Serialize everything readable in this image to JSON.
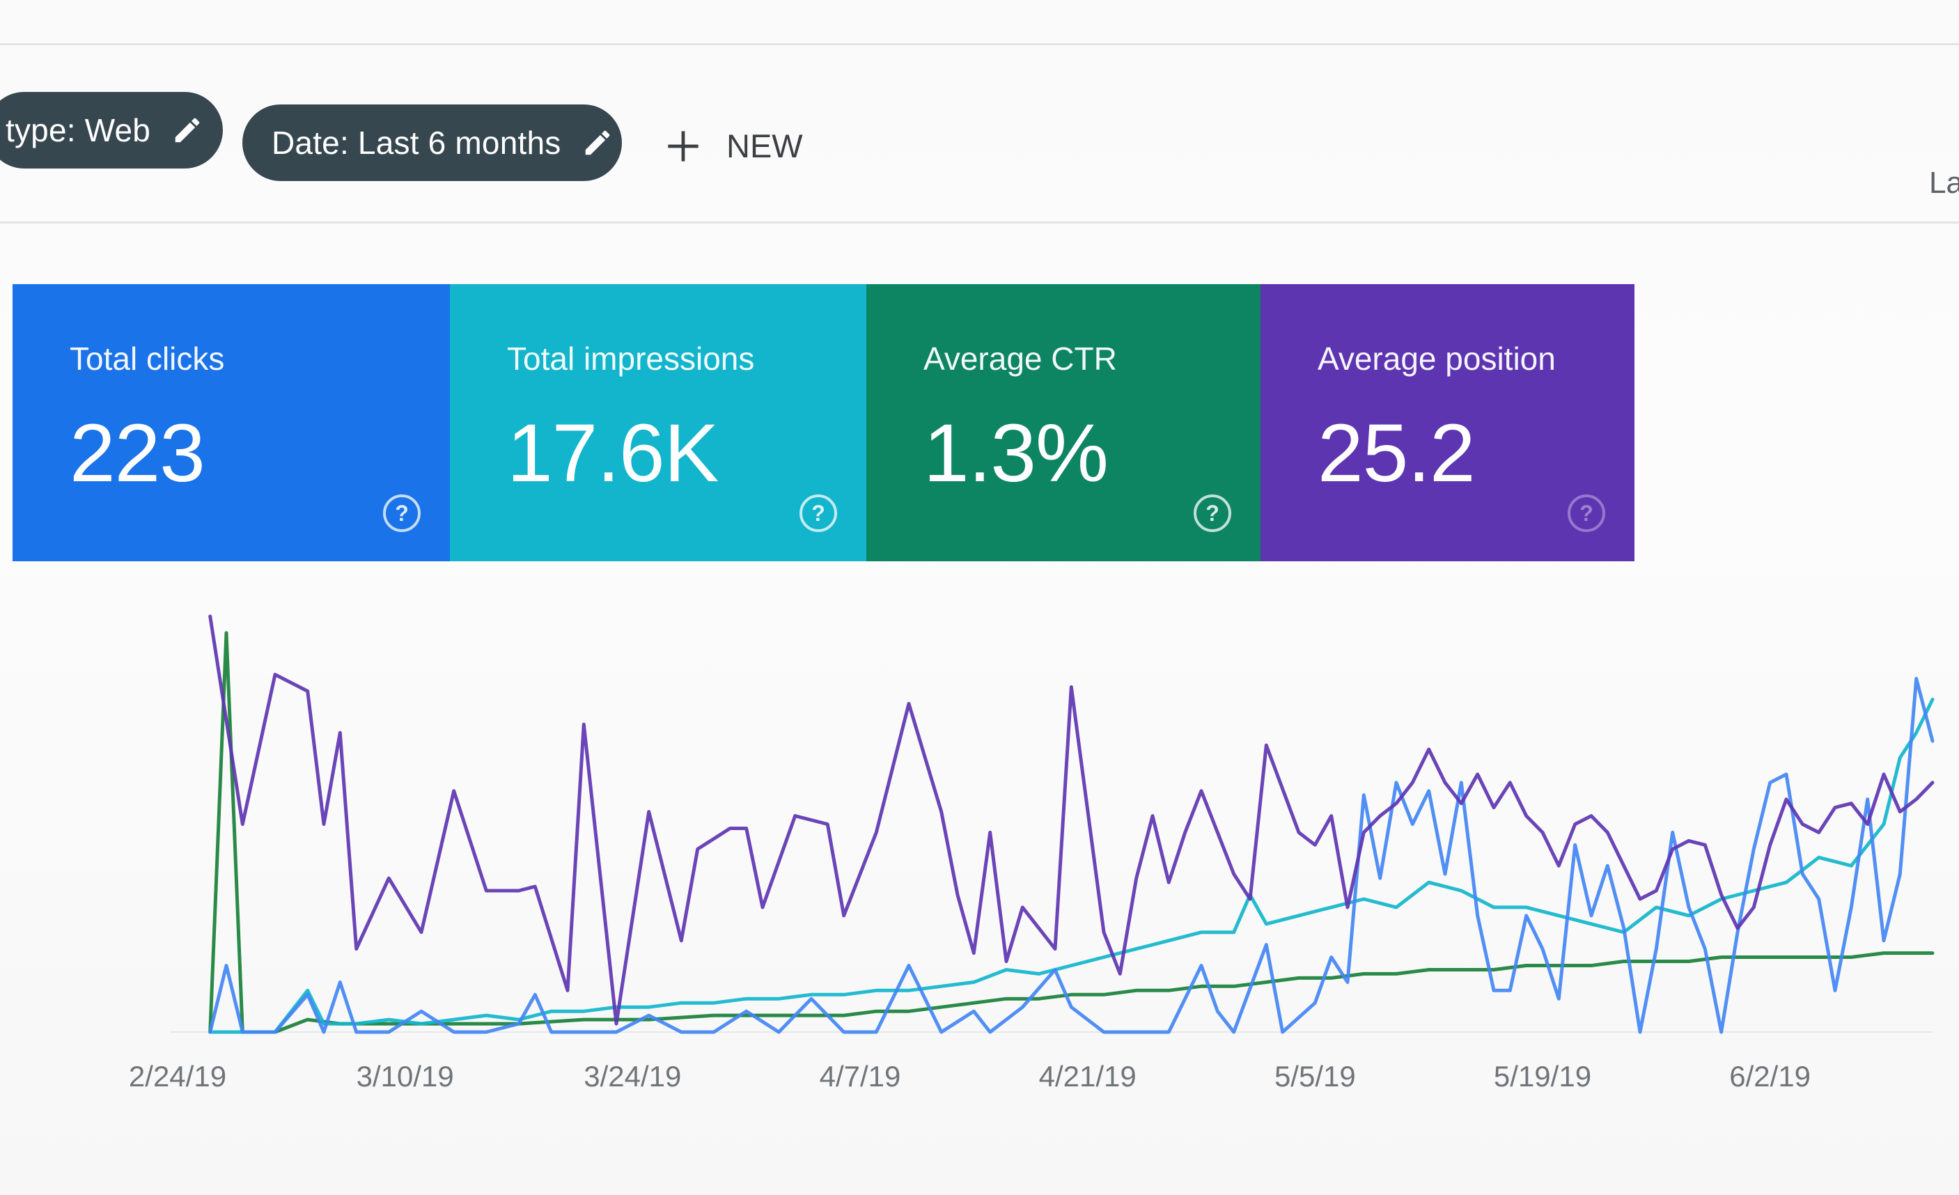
{
  "filters": {
    "type_chip": "type: Web",
    "date_chip": "Date: Last 6 months",
    "new_label": "NEW"
  },
  "corner_text": "La",
  "metrics": [
    {
      "title": "Total clicks",
      "value": "223",
      "color": "#1a73e8"
    },
    {
      "title": "Total impressions",
      "value": "17.6K",
      "color": "#12b5cb"
    },
    {
      "title": "Average CTR",
      "value": "1.3%",
      "color": "#0d8563"
    },
    {
      "title": "Average position",
      "value": "25.2",
      "color": "#5e35b1"
    }
  ],
  "icons": {
    "edit": "pencil-icon",
    "add": "plus-icon",
    "help": "question-circle-icon"
  },
  "chart_data": {
    "type": "line",
    "categories": [
      "2/24/19",
      "3/10/19",
      "3/24/19",
      "4/7/19",
      "4/21/19",
      "5/5/19",
      "5/19/19",
      "6/2/19"
    ],
    "x_range_days": [
      0,
      108
    ],
    "ylim": [
      0,
      1
    ],
    "grid": false,
    "legend": "none",
    "series": [
      {
        "color": "#5e35b1",
        "points": [
          [
            2,
            1.0
          ],
          [
            4,
            0.5
          ],
          [
            6,
            0.86
          ],
          [
            8,
            0.82
          ],
          [
            9,
            0.5
          ],
          [
            10,
            0.72
          ],
          [
            11,
            0.2
          ],
          [
            13,
            0.37
          ],
          [
            15,
            0.24
          ],
          [
            17,
            0.58
          ],
          [
            19,
            0.34
          ],
          [
            21,
            0.34
          ],
          [
            22,
            0.35
          ],
          [
            24,
            0.1
          ],
          [
            25,
            0.74
          ],
          [
            27,
            0.02
          ],
          [
            29,
            0.53
          ],
          [
            31,
            0.22
          ],
          [
            32,
            0.44
          ],
          [
            34,
            0.49
          ],
          [
            35,
            0.49
          ],
          [
            36,
            0.3
          ],
          [
            38,
            0.52
          ],
          [
            40,
            0.5
          ],
          [
            41,
            0.28
          ],
          [
            43,
            0.48
          ],
          [
            45,
            0.79
          ],
          [
            47,
            0.53
          ],
          [
            48,
            0.33
          ],
          [
            49,
            0.19
          ],
          [
            50,
            0.48
          ],
          [
            51,
            0.17
          ],
          [
            52,
            0.3
          ],
          [
            54,
            0.2
          ],
          [
            55,
            0.83
          ],
          [
            57,
            0.24
          ],
          [
            58,
            0.14
          ],
          [
            59,
            0.37
          ],
          [
            60,
            0.52
          ],
          [
            61,
            0.36
          ],
          [
            62,
            0.48
          ],
          [
            63,
            0.58
          ],
          [
            65,
            0.38
          ],
          [
            66,
            0.32
          ],
          [
            67,
            0.69
          ],
          [
            69,
            0.48
          ],
          [
            70,
            0.45
          ],
          [
            71,
            0.52
          ],
          [
            72,
            0.3
          ],
          [
            73,
            0.48
          ],
          [
            74,
            0.52
          ],
          [
            75,
            0.55
          ],
          [
            76,
            0.6
          ],
          [
            77,
            0.68
          ],
          [
            78,
            0.6
          ],
          [
            79,
            0.55
          ],
          [
            80,
            0.62
          ],
          [
            81,
            0.54
          ],
          [
            82,
            0.6
          ],
          [
            83,
            0.52
          ],
          [
            84,
            0.48
          ],
          [
            85,
            0.4
          ],
          [
            86,
            0.5
          ],
          [
            87,
            0.52
          ],
          [
            88,
            0.48
          ],
          [
            90,
            0.32
          ],
          [
            91,
            0.34
          ],
          [
            92,
            0.44
          ],
          [
            93,
            0.46
          ],
          [
            94,
            0.45
          ],
          [
            95,
            0.33
          ],
          [
            96,
            0.25
          ],
          [
            97,
            0.3
          ],
          [
            98,
            0.45
          ],
          [
            99,
            0.56
          ],
          [
            100,
            0.5
          ],
          [
            101,
            0.48
          ],
          [
            102,
            0.54
          ],
          [
            103,
            0.55
          ],
          [
            104,
            0.5
          ],
          [
            105,
            0.62
          ],
          [
            106,
            0.53
          ],
          [
            107,
            0.56
          ],
          [
            108,
            0.6
          ]
        ]
      },
      {
        "color": "#4285f4",
        "points": [
          [
            2,
            0.0
          ],
          [
            3,
            0.16
          ],
          [
            4,
            0.0
          ],
          [
            6,
            0.0
          ],
          [
            8,
            0.09
          ],
          [
            9,
            0.0
          ],
          [
            10,
            0.12
          ],
          [
            11,
            0.0
          ],
          [
            13,
            0.0
          ],
          [
            15,
            0.05
          ],
          [
            17,
            0.0
          ],
          [
            19,
            0.0
          ],
          [
            21,
            0.02
          ],
          [
            22,
            0.09
          ],
          [
            23,
            0.0
          ],
          [
            27,
            0.0
          ],
          [
            29,
            0.04
          ],
          [
            31,
            0.0
          ],
          [
            33,
            0.0
          ],
          [
            35,
            0.05
          ],
          [
            37,
            0.0
          ],
          [
            39,
            0.08
          ],
          [
            41,
            0.0
          ],
          [
            43,
            0.0
          ],
          [
            45,
            0.16
          ],
          [
            47,
            0.0
          ],
          [
            49,
            0.05
          ],
          [
            50,
            0.0
          ],
          [
            52,
            0.06
          ],
          [
            54,
            0.15
          ],
          [
            55,
            0.06
          ],
          [
            57,
            0.0
          ],
          [
            59,
            0.0
          ],
          [
            61,
            0.0
          ],
          [
            63,
            0.16
          ],
          [
            64,
            0.05
          ],
          [
            65,
            0.0
          ],
          [
            67,
            0.21
          ],
          [
            68,
            0.0
          ],
          [
            70,
            0.07
          ],
          [
            71,
            0.18
          ],
          [
            72,
            0.12
          ],
          [
            73,
            0.57
          ],
          [
            74,
            0.37
          ],
          [
            75,
            0.6
          ],
          [
            76,
            0.5
          ],
          [
            77,
            0.58
          ],
          [
            78,
            0.38
          ],
          [
            79,
            0.6
          ],
          [
            80,
            0.28
          ],
          [
            81,
            0.1
          ],
          [
            82,
            0.1
          ],
          [
            83,
            0.28
          ],
          [
            84,
            0.2
          ],
          [
            85,
            0.08
          ],
          [
            86,
            0.45
          ],
          [
            87,
            0.28
          ],
          [
            88,
            0.4
          ],
          [
            89,
            0.25
          ],
          [
            90,
            0.0
          ],
          [
            91,
            0.2
          ],
          [
            92,
            0.48
          ],
          [
            93,
            0.3
          ],
          [
            94,
            0.2
          ],
          [
            95,
            0.0
          ],
          [
            96,
            0.24
          ],
          [
            97,
            0.44
          ],
          [
            98,
            0.6
          ],
          [
            99,
            0.62
          ],
          [
            100,
            0.38
          ],
          [
            101,
            0.32
          ],
          [
            102,
            0.1
          ],
          [
            103,
            0.3
          ],
          [
            104,
            0.56
          ],
          [
            105,
            0.22
          ],
          [
            106,
            0.38
          ],
          [
            107,
            0.85
          ],
          [
            108,
            0.7
          ]
        ]
      },
      {
        "color": "#12b5cb",
        "points": [
          [
            2,
            0.0
          ],
          [
            4,
            0.0
          ],
          [
            6,
            0.0
          ],
          [
            8,
            0.1
          ],
          [
            9,
            0.02
          ],
          [
            11,
            0.02
          ],
          [
            13,
            0.03
          ],
          [
            15,
            0.02
          ],
          [
            17,
            0.03
          ],
          [
            19,
            0.04
          ],
          [
            21,
            0.03
          ],
          [
            23,
            0.05
          ],
          [
            25,
            0.05
          ],
          [
            27,
            0.06
          ],
          [
            29,
            0.06
          ],
          [
            31,
            0.07
          ],
          [
            33,
            0.07
          ],
          [
            35,
            0.08
          ],
          [
            37,
            0.08
          ],
          [
            39,
            0.09
          ],
          [
            41,
            0.09
          ],
          [
            43,
            0.1
          ],
          [
            45,
            0.1
          ],
          [
            47,
            0.11
          ],
          [
            49,
            0.12
          ],
          [
            51,
            0.15
          ],
          [
            53,
            0.14
          ],
          [
            55,
            0.16
          ],
          [
            57,
            0.18
          ],
          [
            59,
            0.2
          ],
          [
            61,
            0.22
          ],
          [
            63,
            0.24
          ],
          [
            65,
            0.24
          ],
          [
            66,
            0.33
          ],
          [
            67,
            0.26
          ],
          [
            69,
            0.28
          ],
          [
            71,
            0.3
          ],
          [
            73,
            0.32
          ],
          [
            75,
            0.3
          ],
          [
            77,
            0.36
          ],
          [
            79,
            0.34
          ],
          [
            81,
            0.3
          ],
          [
            83,
            0.3
          ],
          [
            85,
            0.28
          ],
          [
            87,
            0.26
          ],
          [
            89,
            0.24
          ],
          [
            91,
            0.3
          ],
          [
            93,
            0.28
          ],
          [
            95,
            0.32
          ],
          [
            97,
            0.34
          ],
          [
            99,
            0.36
          ],
          [
            101,
            0.42
          ],
          [
            103,
            0.4
          ],
          [
            105,
            0.5
          ],
          [
            106,
            0.66
          ],
          [
            107,
            0.72
          ],
          [
            108,
            0.8
          ]
        ]
      },
      {
        "color": "#188038",
        "points": [
          [
            2,
            0.0
          ],
          [
            3,
            0.96
          ],
          [
            4,
            0.0
          ],
          [
            6,
            0.0
          ],
          [
            8,
            0.03
          ],
          [
            10,
            0.02
          ],
          [
            13,
            0.02
          ],
          [
            17,
            0.02
          ],
          [
            21,
            0.02
          ],
          [
            25,
            0.03
          ],
          [
            29,
            0.03
          ],
          [
            33,
            0.04
          ],
          [
            37,
            0.04
          ],
          [
            41,
            0.04
          ],
          [
            43,
            0.05
          ],
          [
            45,
            0.05
          ],
          [
            47,
            0.06
          ],
          [
            49,
            0.07
          ],
          [
            51,
            0.08
          ],
          [
            53,
            0.08
          ],
          [
            55,
            0.09
          ],
          [
            57,
            0.09
          ],
          [
            59,
            0.1
          ],
          [
            61,
            0.1
          ],
          [
            63,
            0.11
          ],
          [
            65,
            0.11
          ],
          [
            67,
            0.12
          ],
          [
            69,
            0.13
          ],
          [
            71,
            0.13
          ],
          [
            73,
            0.14
          ],
          [
            75,
            0.14
          ],
          [
            77,
            0.15
          ],
          [
            79,
            0.15
          ],
          [
            81,
            0.15
          ],
          [
            83,
            0.16
          ],
          [
            85,
            0.16
          ],
          [
            87,
            0.16
          ],
          [
            89,
            0.17
          ],
          [
            91,
            0.17
          ],
          [
            93,
            0.17
          ],
          [
            95,
            0.18
          ],
          [
            97,
            0.18
          ],
          [
            99,
            0.18
          ],
          [
            101,
            0.18
          ],
          [
            103,
            0.18
          ],
          [
            105,
            0.19
          ],
          [
            107,
            0.19
          ],
          [
            108,
            0.19
          ]
        ]
      }
    ]
  }
}
